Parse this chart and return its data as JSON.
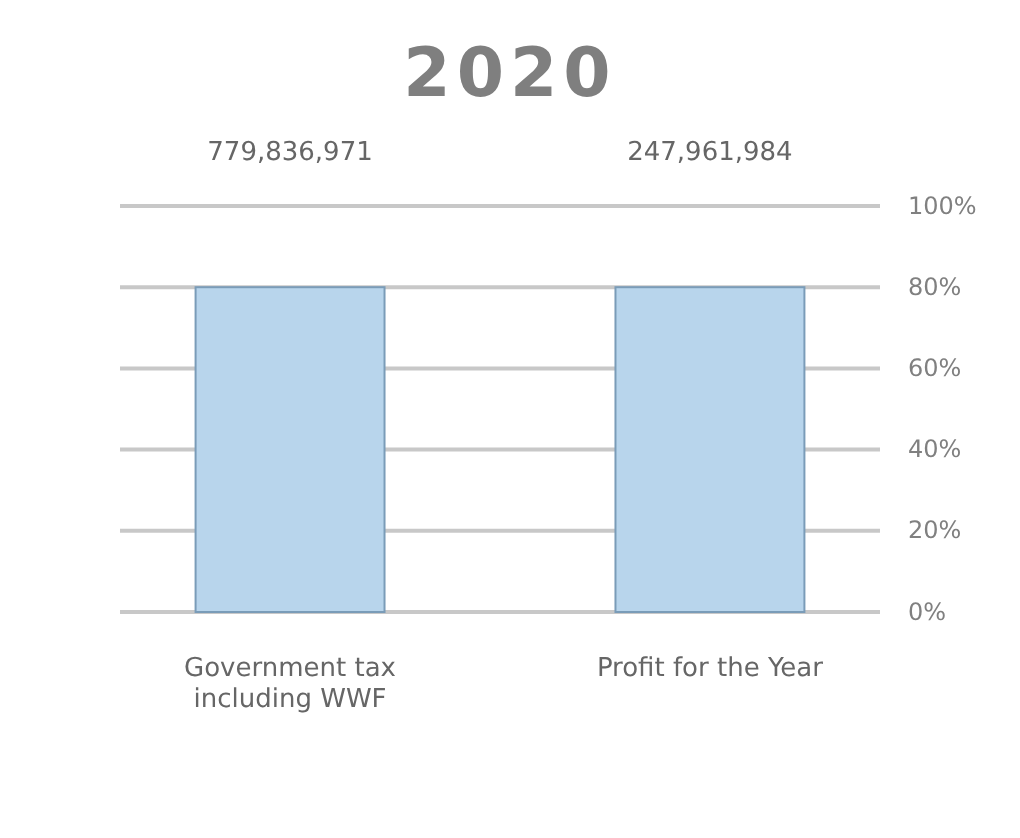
{
  "chart_data": {
    "type": "bar",
    "title": "2020",
    "categories": [
      "Government tax including WWF",
      "Profit for the Year"
    ],
    "values": [
      80,
      80
    ],
    "annotations": [
      "779,836,971",
      "247,961,984"
    ],
    "color": "#b8d5ec",
    "ylim": [
      0,
      100
    ],
    "yticks": [
      {
        "value": 0,
        "label": "0%"
      },
      {
        "value": 20,
        "label": "20%"
      },
      {
        "value": 40,
        "label": "40%"
      },
      {
        "value": 60,
        "label": "60%"
      },
      {
        "value": 80,
        "label": "80%"
      },
      {
        "value": 100,
        "label": "100%"
      }
    ],
    "grid": "y"
  }
}
